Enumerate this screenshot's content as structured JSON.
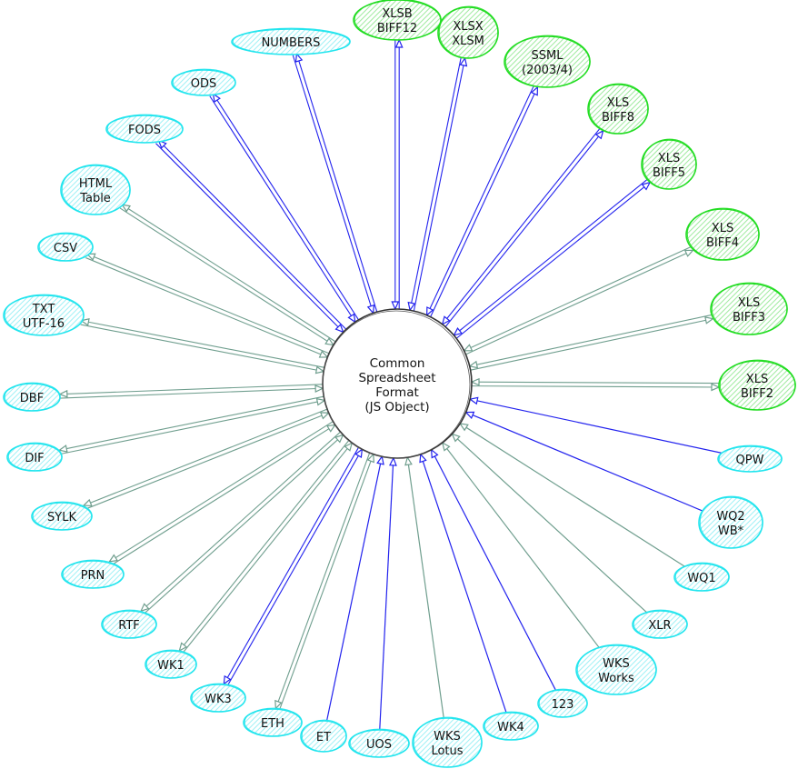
{
  "colors": {
    "write_fill": "#c4f5c4",
    "write_stroke": "#22dd22",
    "read_fill": "#bff5f8",
    "read_stroke": "#22e5ee",
    "edge_blue": "#2222ee",
    "edge_gray": "#6f9e8e",
    "center_stroke": "#333333"
  },
  "center": {
    "lines": [
      "Common",
      "Spreadsheet",
      "Format",
      "(JS Object)"
    ]
  },
  "nodes": [
    {
      "lines": [
        "NUMBERS"
      ],
      "fill": "cyan",
      "edge": "blue",
      "both": true
    },
    {
      "lines": [
        "XLSB",
        "BIFF12"
      ],
      "fill": "green",
      "edge": "blue",
      "both": true
    },
    {
      "lines": [
        "XLSX",
        "XLSM"
      ],
      "fill": "green",
      "edge": "blue",
      "both": true
    },
    {
      "lines": [
        "SSML",
        "(2003/4)"
      ],
      "fill": "green",
      "edge": "blue",
      "both": true
    },
    {
      "lines": [
        "XLS",
        "BIFF8"
      ],
      "fill": "green",
      "edge": "blue",
      "both": true
    },
    {
      "lines": [
        "XLS",
        "BIFF5"
      ],
      "fill": "green",
      "edge": "blue",
      "both": true
    },
    {
      "lines": [
        "XLS",
        "BIFF4"
      ],
      "fill": "green",
      "edge": "gray",
      "both": true
    },
    {
      "lines": [
        "XLS",
        "BIFF3"
      ],
      "fill": "green",
      "edge": "gray",
      "both": true
    },
    {
      "lines": [
        "XLS",
        "BIFF2"
      ],
      "fill": "green",
      "edge": "gray",
      "both": true
    },
    {
      "lines": [
        "QPW"
      ],
      "fill": "cyan",
      "edge": "blue",
      "both": false
    },
    {
      "lines": [
        "WQ2",
        "WB*"
      ],
      "fill": "cyan",
      "edge": "blue",
      "both": false
    },
    {
      "lines": [
        "WQ1"
      ],
      "fill": "cyan",
      "edge": "gray",
      "both": false
    },
    {
      "lines": [
        "XLR"
      ],
      "fill": "cyan",
      "edge": "gray",
      "both": false
    },
    {
      "lines": [
        "WKS",
        "Works"
      ],
      "fill": "cyan",
      "edge": "gray",
      "both": false
    },
    {
      "lines": [
        "123"
      ],
      "fill": "cyan",
      "edge": "blue",
      "both": false
    },
    {
      "lines": [
        "WK4"
      ],
      "fill": "cyan",
      "edge": "blue",
      "both": false
    },
    {
      "lines": [
        "WKS",
        "Lotus"
      ],
      "fill": "cyan",
      "edge": "gray",
      "both": false
    },
    {
      "lines": [
        "UOS"
      ],
      "fill": "cyan",
      "edge": "blue",
      "both": false
    },
    {
      "lines": [
        "ET"
      ],
      "fill": "cyan",
      "edge": "blue",
      "both": false
    },
    {
      "lines": [
        "ETH"
      ],
      "fill": "cyan",
      "edge": "gray",
      "both": true
    },
    {
      "lines": [
        "WK3"
      ],
      "fill": "cyan",
      "edge": "blue",
      "both": true
    },
    {
      "lines": [
        "WK1"
      ],
      "fill": "cyan",
      "edge": "gray",
      "both": true
    },
    {
      "lines": [
        "RTF"
      ],
      "fill": "cyan",
      "edge": "gray",
      "both": true
    },
    {
      "lines": [
        "PRN"
      ],
      "fill": "cyan",
      "edge": "gray",
      "both": true
    },
    {
      "lines": [
        "SYLK"
      ],
      "fill": "cyan",
      "edge": "gray",
      "both": true
    },
    {
      "lines": [
        "DIF"
      ],
      "fill": "cyan",
      "edge": "gray",
      "both": true
    },
    {
      "lines": [
        "DBF"
      ],
      "fill": "cyan",
      "edge": "gray",
      "both": true
    },
    {
      "lines": [
        "TXT",
        "UTF-16"
      ],
      "fill": "cyan",
      "edge": "gray",
      "both": true
    },
    {
      "lines": [
        "CSV"
      ],
      "fill": "cyan",
      "edge": "gray",
      "both": true
    },
    {
      "lines": [
        "HTML",
        "Table"
      ],
      "fill": "cyan",
      "edge": "gray",
      "both": true
    },
    {
      "lines": [
        "FODS"
      ],
      "fill": "cyan",
      "edge": "blue",
      "both": true
    },
    {
      "lines": [
        "ODS"
      ],
      "fill": "cyan",
      "edge": "blue",
      "both": true
    }
  ]
}
